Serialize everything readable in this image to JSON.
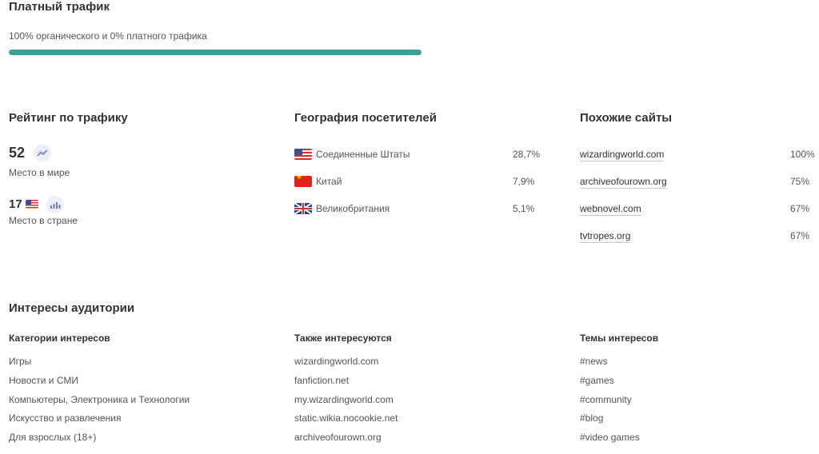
{
  "paid_traffic": {
    "title": "Платный трафик",
    "summary": "100% органического и 0% платного трафика",
    "organic_fraction": 1.0,
    "bar_color": "#3aa196"
  },
  "rank": {
    "title": "Рейтинг по трафику",
    "world_value": "52",
    "world_label": "Место в мире",
    "country_value": "17",
    "country_label": "Место в стране",
    "country_flag": "us-flag-icon",
    "trend_icon": "trend-chart-icon"
  },
  "geo": {
    "title": "География посетителей",
    "rows": [
      {
        "flag": "us-flag-icon",
        "name": "Соединенные Штаты",
        "value": "28,7%"
      },
      {
        "flag": "cn-flag-icon",
        "name": "Китай",
        "value": "7,9%"
      },
      {
        "flag": "gb-flag-icon",
        "name": "Великобритания",
        "value": "5,1%"
      }
    ]
  },
  "similar": {
    "title": "Похожие сайты",
    "rows": [
      {
        "site": "wizardingworld.com",
        "value": "100%"
      },
      {
        "site": "archiveofourown.org",
        "value": "75%"
      },
      {
        "site": "webnovel.com",
        "value": "67%"
      },
      {
        "site": "tvtropes.org",
        "value": "67%"
      }
    ]
  },
  "interests": {
    "title": "Интересы аудитории",
    "categories": {
      "header": "Категории интересов",
      "items": [
        "Игры",
        "Новости и СМИ",
        "Компьютеры, Электроника и Технологии",
        "Искусство и развлечения",
        "Для взрослых (18+)"
      ]
    },
    "also": {
      "header": "Также интересуются",
      "items": [
        "wizardingworld.com",
        "fanfiction.net",
        "my.wizardingworld.com",
        "static.wikia.nocookie.net",
        "archiveofourown.org"
      ]
    },
    "topics": {
      "header": "Темы интересов",
      "items": [
        "#news",
        "#games",
        "#community",
        "#blog",
        "#video games"
      ]
    }
  }
}
